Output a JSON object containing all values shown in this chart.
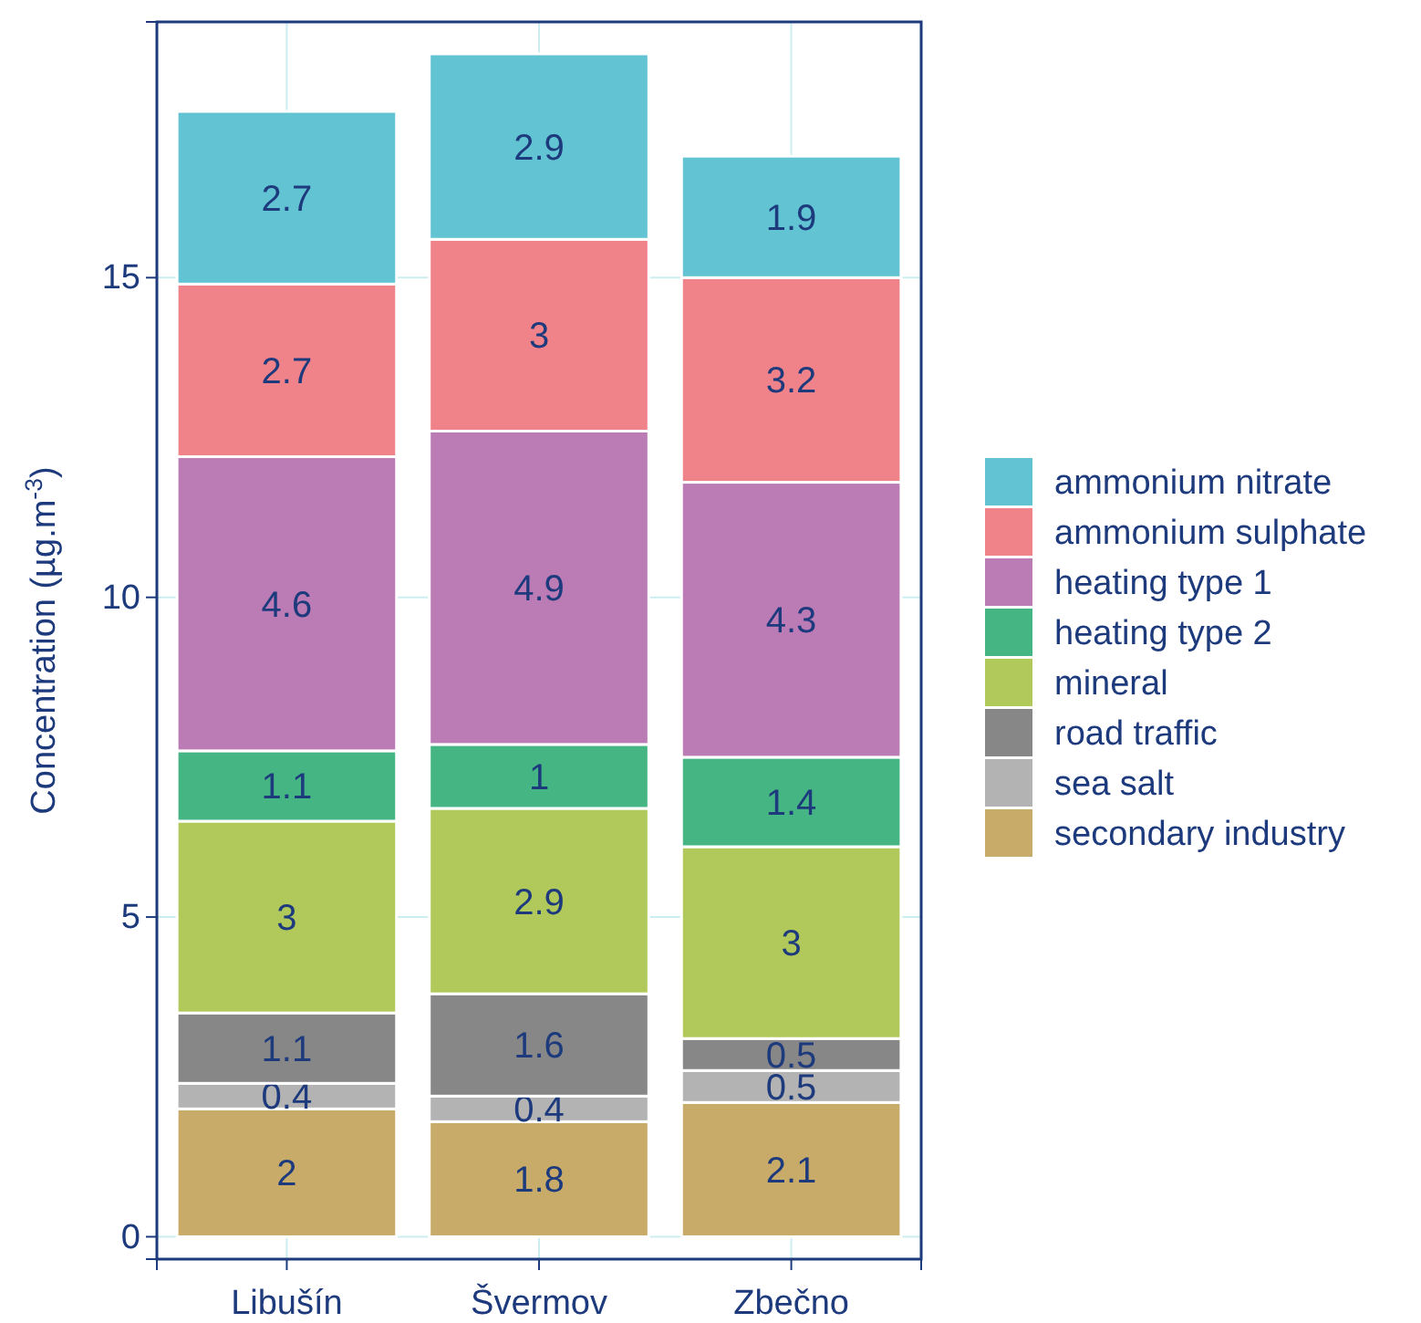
{
  "chart_data": {
    "type": "bar",
    "stacked": true,
    "ylabel": "Concentration (µg.m$^{-3}$)",
    "categories": [
      "Libušín",
      "Švermov",
      "Zbečno"
    ],
    "series": [
      {
        "name": "secondary industry",
        "color": "#c8ab68",
        "values": [
          2,
          1.8,
          2.1
        ]
      },
      {
        "name": "sea salt",
        "color": "#b3b3b3",
        "values": [
          0.4,
          0.4,
          0.5
        ]
      },
      {
        "name": "road traffic",
        "color": "#878787",
        "values": [
          1.1,
          1.6,
          0.5
        ]
      },
      {
        "name": "mineral",
        "color": "#b0c95a",
        "values": [
          3,
          2.9,
          3
        ]
      },
      {
        "name": "heating type 2",
        "color": "#45b584",
        "values": [
          1.1,
          1,
          1.4
        ]
      },
      {
        "name": "heating type 1",
        "color": "#bb7bb5",
        "values": [
          4.6,
          4.9,
          4.3
        ]
      },
      {
        "name": "ammonium sulphate",
        "color": "#f0838a",
        "values": [
          2.7,
          3,
          3.2
        ]
      },
      {
        "name": "ammonium nitrate",
        "color": "#62c3d3",
        "values": [
          2.7,
          2.9,
          1.9
        ]
      }
    ],
    "ylim": [
      -0.35,
      19
    ],
    "yticks": [
      0,
      5,
      10,
      15
    ],
    "grid": true,
    "legend": "right",
    "data_labels": true
  }
}
